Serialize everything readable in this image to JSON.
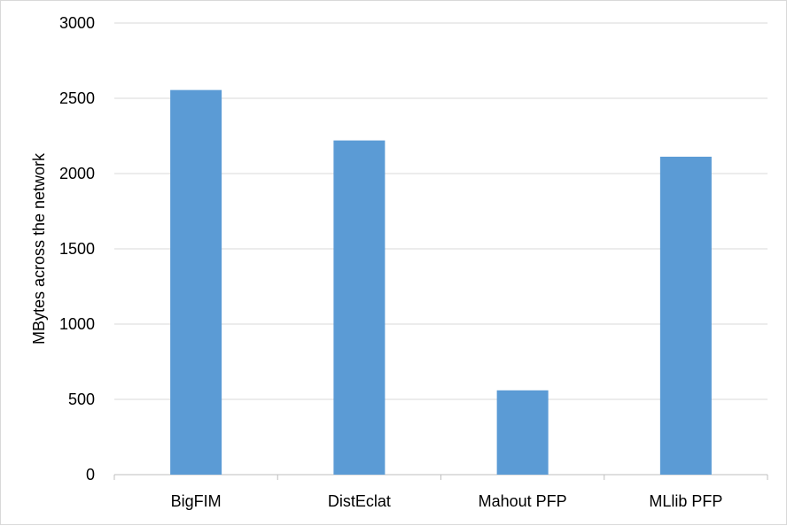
{
  "chart_data": {
    "type": "bar",
    "title": "",
    "xlabel": "",
    "ylabel": "MBytes across the network",
    "categories": [
      "BigFIM",
      "DistEclat",
      "Mahout PFP",
      "MLlib PFP"
    ],
    "values": [
      2555,
      2220,
      560,
      2112
    ],
    "ylim": [
      0,
      3000
    ],
    "yticks": [
      0,
      500,
      1000,
      1500,
      2000,
      2500,
      3000
    ],
    "grid": true,
    "legend": "none",
    "colors": {
      "bar": "#5B9BD5",
      "grid": "#D9D9D9",
      "axis": "#BFBFBF"
    }
  }
}
